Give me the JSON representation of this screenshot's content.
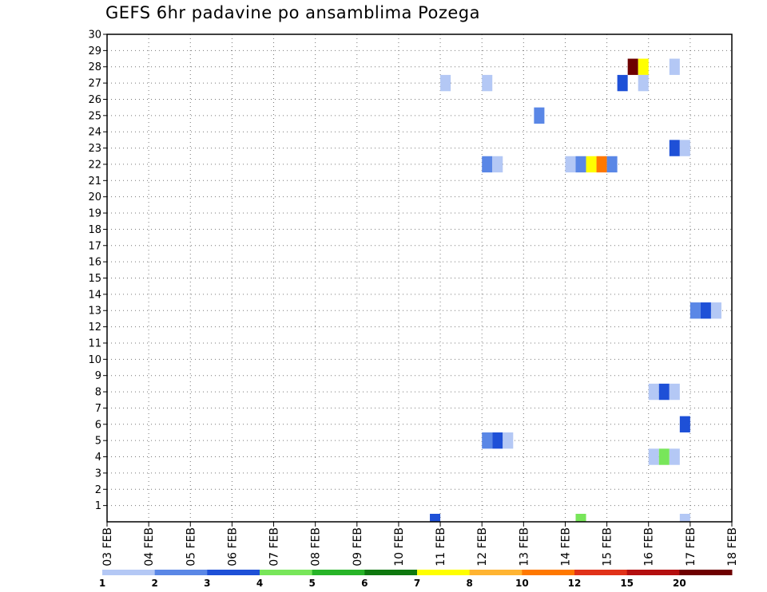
{
  "chart_data": {
    "type": "heatmap",
    "title": "GEFS 6hr padavine po ansamblima Pozega",
    "x_ticks": [
      "03 FEB",
      "04 FEB",
      "05 FEB",
      "06 FEB",
      "07 FEB",
      "08 FEB",
      "09 FEB",
      "10 FEB",
      "11 FEB",
      "12 FEB",
      "13 FEB",
      "14 FEB",
      "15 FEB",
      "16 FEB",
      "17 FEB",
      "18 FEB"
    ],
    "y_ticks": [
      1,
      2,
      3,
      4,
      5,
      6,
      7,
      8,
      9,
      10,
      11,
      12,
      13,
      14,
      15,
      16,
      17,
      18,
      19,
      20,
      21,
      22,
      23,
      24,
      25,
      26,
      27,
      28,
      29,
      30
    ],
    "x_range_days": [
      0,
      15
    ],
    "y_range": [
      0,
      30
    ],
    "grid": true,
    "color_levels": [
      1,
      2,
      3,
      4,
      5,
      6,
      7,
      8,
      10,
      12,
      15,
      20
    ],
    "colors": [
      "#b4c8f5",
      "#5a87e6",
      "#1e50d7",
      "#78e65a",
      "#28b428",
      "#0f780f",
      "#ffff00",
      "#ffb432",
      "#ff7800",
      "#e13219",
      "#b40f0f",
      "#6e0000"
    ],
    "cells": [
      {
        "day": 7.75,
        "member": 0,
        "value": 3.5
      },
      {
        "day": 11.25,
        "member": 0,
        "value": 4.5
      },
      {
        "day": 13.75,
        "member": 0,
        "value": 1.5
      },
      {
        "day": 12.5,
        "member": 28,
        "value": 25
      },
      {
        "day": 12.75,
        "member": 28,
        "value": 7.5
      },
      {
        "day": 13.5,
        "member": 28,
        "value": 1.5
      },
      {
        "day": 8.0,
        "member": 27,
        "value": 1.5
      },
      {
        "day": 9.0,
        "member": 27,
        "value": 1.5
      },
      {
        "day": 12.25,
        "member": 27,
        "value": 3.5
      },
      {
        "day": 12.75,
        "member": 27,
        "value": 1.5
      },
      {
        "day": 10.25,
        "member": 25,
        "value": 2.5
      },
      {
        "day": 13.5,
        "member": 23,
        "value": 3.5
      },
      {
        "day": 13.75,
        "member": 23,
        "value": 1.5
      },
      {
        "day": 9.0,
        "member": 22,
        "value": 2.5
      },
      {
        "day": 9.25,
        "member": 22,
        "value": 1.5
      },
      {
        "day": 11.0,
        "member": 22,
        "value": 1.5
      },
      {
        "day": 11.25,
        "member": 22,
        "value": 2.5
      },
      {
        "day": 11.5,
        "member": 22,
        "value": 7.5
      },
      {
        "day": 11.75,
        "member": 22,
        "value": 11
      },
      {
        "day": 12.0,
        "member": 22,
        "value": 2.5
      },
      {
        "day": 14.0,
        "member": 13,
        "value": 2.5
      },
      {
        "day": 14.25,
        "member": 13,
        "value": 3.5
      },
      {
        "day": 14.5,
        "member": 13,
        "value": 1.5
      },
      {
        "day": 13.0,
        "member": 8,
        "value": 1.5
      },
      {
        "day": 13.25,
        "member": 8,
        "value": 3.5
      },
      {
        "day": 13.5,
        "member": 8,
        "value": 1.5
      },
      {
        "day": 13.75,
        "member": 6,
        "value": 3.5
      },
      {
        "day": 9.0,
        "member": 5,
        "value": 2.5
      },
      {
        "day": 9.25,
        "member": 5,
        "value": 3.5
      },
      {
        "day": 9.5,
        "member": 5,
        "value": 1.5
      },
      {
        "day": 13.0,
        "member": 4,
        "value": 1.5
      },
      {
        "day": 13.25,
        "member": 4,
        "value": 4.5
      },
      {
        "day": 13.5,
        "member": 4,
        "value": 1.5
      }
    ]
  }
}
